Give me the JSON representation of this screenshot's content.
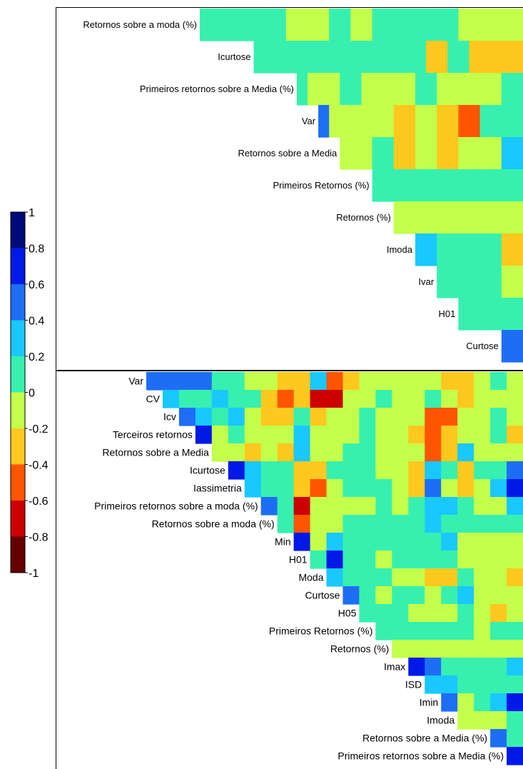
{
  "palette": [
    "#640000",
    "#cc0000",
    "#ff5500",
    "#ffc81e",
    "#c3ff4b",
    "#37f0af",
    "#19c8ff",
    "#1e6ef5",
    "#0019e6",
    "#000a78"
  ],
  "legend": {
    "ticks": [
      "1",
      "0.8",
      "0.6",
      "0.4",
      "0.2",
      "0",
      "-0.2",
      "-0.4",
      "-0.6",
      "-0.8",
      "-1"
    ],
    "range": [
      -1,
      1
    ]
  },
  "chart_data": [
    {
      "type": "heatmap",
      "rows": [
        "Retornos sobre a moda (%)",
        "Icurtose",
        "Primeiros retornos sobre a Media (%)",
        "Var",
        "Retornos sobre a Media",
        "Primeiros Retornos (%)",
        "Retornos (%)",
        "Imoda",
        "Ivar",
        "H01",
        "Curtose"
      ],
      "values": [
        [
          0.1,
          0.1,
          0.1,
          0.1,
          0.1,
          0.1,
          0.1,
          0.1,
          -0.1,
          -0.1,
          -0.1,
          -0.1,
          0.1,
          0.1,
          -0.1,
          -0.1,
          0.1,
          0.1,
          0.1,
          0.1,
          0.1,
          0.1,
          0.1,
          0.1,
          -0.1,
          -0.1,
          -0.1,
          -0.1,
          -0.1,
          -0.1
        ],
        [
          null,
          null,
          null,
          null,
          null,
          0.1,
          0.1,
          0.1,
          0.1,
          0.1,
          0.1,
          0.1,
          0.1,
          0.1,
          0.1,
          0.1,
          0.1,
          0.1,
          0.1,
          0.1,
          0.1,
          -0.3,
          -0.3,
          0.1,
          0.1,
          -0.3,
          -0.3,
          -0.3,
          -0.3,
          -0.3
        ],
        [
          null,
          null,
          null,
          null,
          null,
          null,
          null,
          null,
          null,
          0.1,
          -0.1,
          -0.1,
          -0.1,
          0.1,
          0.1,
          -0.1,
          -0.1,
          -0.1,
          -0.1,
          -0.1,
          0.1,
          0.1,
          -0.1,
          -0.1,
          -0.1,
          -0.1,
          -0.1,
          -0.1,
          0.1,
          0.1
        ],
        [
          null,
          null,
          null,
          null,
          null,
          null,
          null,
          null,
          null,
          null,
          null,
          0.5,
          -0.1,
          -0.1,
          -0.1,
          -0.1,
          -0.1,
          -0.1,
          -0.3,
          -0.3,
          -0.1,
          -0.1,
          -0.3,
          -0.3,
          -0.5,
          -0.5,
          0.1,
          0.1,
          0.1,
          0.1
        ],
        [
          null,
          null,
          null,
          null,
          null,
          null,
          null,
          null,
          null,
          null,
          null,
          null,
          null,
          -0.1,
          -0.1,
          -0.1,
          0.1,
          0.1,
          -0.3,
          -0.3,
          -0.1,
          -0.1,
          -0.3,
          -0.3,
          -0.1,
          -0.1,
          -0.1,
          -0.1,
          0.3,
          0.3
        ],
        [
          null,
          null,
          null,
          null,
          null,
          null,
          null,
          null,
          null,
          null,
          null,
          null,
          null,
          null,
          null,
          null,
          0.1,
          0.1,
          0.1,
          0.1,
          0.1,
          0.1,
          0.1,
          0.1,
          0.1,
          0.1,
          0.1,
          0.1,
          0.1,
          0.1
        ],
        [
          null,
          null,
          null,
          null,
          null,
          null,
          null,
          null,
          null,
          null,
          null,
          null,
          null,
          null,
          null,
          null,
          null,
          null,
          -0.1,
          -0.1,
          -0.1,
          -0.1,
          -0.1,
          -0.1,
          -0.1,
          -0.1,
          -0.1,
          -0.1,
          -0.1,
          -0.1
        ],
        [
          null,
          null,
          null,
          null,
          null,
          null,
          null,
          null,
          null,
          null,
          null,
          null,
          null,
          null,
          null,
          null,
          null,
          null,
          null,
          null,
          0.3,
          0.3,
          0.1,
          0.1,
          0.1,
          0.1,
          0.1,
          0.1,
          -0.3,
          -0.3
        ],
        [
          null,
          null,
          null,
          null,
          null,
          null,
          null,
          null,
          null,
          null,
          null,
          null,
          null,
          null,
          null,
          null,
          null,
          null,
          null,
          null,
          null,
          null,
          0.1,
          0.1,
          0.1,
          0.1,
          0.1,
          0.1,
          -0.1,
          -0.1
        ],
        [
          null,
          null,
          null,
          null,
          null,
          null,
          null,
          null,
          null,
          null,
          null,
          null,
          null,
          null,
          null,
          null,
          null,
          null,
          null,
          null,
          null,
          null,
          null,
          null,
          0.1,
          0.1,
          0.1,
          0.1,
          0.1,
          0.1
        ],
        [
          null,
          null,
          null,
          null,
          null,
          null,
          null,
          null,
          null,
          null,
          null,
          null,
          null,
          null,
          null,
          null,
          null,
          null,
          null,
          null,
          null,
          null,
          null,
          null,
          null,
          null,
          null,
          null,
          0.5,
          0.5
        ]
      ]
    },
    {
      "type": "heatmap",
      "rows": [
        "Var",
        "CV",
        "Icv",
        "Terceiros retornos",
        "Retornos sobre a Media",
        "Icurtose",
        "Iassimetria",
        "Primeiros retornos sobre a moda (%)",
        "Retornos sobre a moda (%)",
        "Min",
        "H01",
        "Moda",
        "Curtose",
        "H05",
        "Primeiros Retornos (%)",
        "Retornos (%)",
        "Imax",
        "ISD",
        "Imin",
        "Imoda",
        "Retornos sobre a Media (%)",
        "Primeiros retornos sobre a Media (%)"
      ],
      "values": [
        [
          0.5,
          0.5,
          0.5,
          0.5,
          0.1,
          0.1,
          -0.1,
          -0.1,
          -0.3,
          -0.3,
          0.3,
          -0.5,
          -0.3,
          -0.1,
          -0.1,
          -0.1,
          -0.1,
          -0.1,
          -0.3,
          -0.3,
          -0.1,
          0.1,
          -0.1
        ],
        [
          null,
          0.3,
          0.1,
          0.1,
          0.3,
          0.1,
          0.1,
          -0.3,
          -0.5,
          -0.3,
          -0.7,
          -0.7,
          -0.1,
          -0.1,
          0.1,
          -0.1,
          -0.1,
          0.1,
          -0.1,
          -0.3,
          -0.1,
          -0.1,
          -0.1
        ],
        [
          null,
          null,
          0.5,
          0.3,
          0.1,
          0.3,
          -0.1,
          -0.3,
          -0.3,
          0.1,
          -0.3,
          -0.1,
          -0.1,
          0.1,
          -0.1,
          -0.1,
          -0.1,
          -0.5,
          -0.5,
          -0.1,
          -0.1,
          0.1,
          -0.1
        ],
        [
          null,
          null,
          null,
          0.7,
          -0.1,
          0.1,
          -0.1,
          -0.1,
          -0.1,
          0.3,
          -0.1,
          -0.1,
          -0.1,
          0.1,
          -0.1,
          -0.1,
          -0.3,
          -0.5,
          -0.3,
          -0.1,
          -0.1,
          0.1,
          -0.3
        ],
        [
          null,
          null,
          null,
          null,
          -0.1,
          -0.1,
          -0.3,
          -0.1,
          -0.3,
          0.3,
          -0.1,
          -0.1,
          0.1,
          0.1,
          -0.1,
          -0.1,
          -0.1,
          -0.5,
          -0.3,
          0.3,
          -0.1,
          -0.1,
          -0.1
        ],
        [
          null,
          null,
          null,
          null,
          null,
          0.7,
          0.3,
          0.1,
          0.1,
          -0.3,
          -0.3,
          0.1,
          0.1,
          0.1,
          -0.1,
          -0.1,
          -0.3,
          0.3,
          0.1,
          -0.3,
          0.1,
          0.1,
          0.5
        ],
        [
          null,
          null,
          null,
          null,
          null,
          null,
          0.3,
          0.1,
          0.1,
          -0.3,
          -0.5,
          -0.1,
          0.1,
          0.1,
          0.1,
          -0.1,
          -0.3,
          0.5,
          -0.1,
          -0.3,
          -0.1,
          0.3,
          0.7
        ],
        [
          null,
          null,
          null,
          null,
          null,
          null,
          null,
          0.5,
          0.1,
          -0.7,
          -0.1,
          -0.1,
          -0.1,
          -0.1,
          0.1,
          -0.1,
          0.1,
          0.3,
          0.3,
          0.1,
          -0.1,
          -0.1,
          0.3
        ],
        [
          null,
          null,
          null,
          null,
          null,
          null,
          null,
          null,
          0.1,
          -0.5,
          -0.1,
          -0.1,
          0.1,
          0.1,
          0.1,
          0.1,
          0.1,
          0.3,
          0.1,
          0.1,
          0.1,
          0.1,
          0.1
        ],
        [
          null,
          null,
          null,
          null,
          null,
          null,
          null,
          null,
          null,
          0.7,
          -0.1,
          0.3,
          0.1,
          0.1,
          0.1,
          0.1,
          0.1,
          0.1,
          0.3,
          -0.1,
          -0.1,
          -0.1,
          -0.1
        ],
        [
          null,
          null,
          null,
          null,
          null,
          null,
          null,
          null,
          null,
          null,
          0.1,
          0.7,
          0.1,
          0.1,
          -0.1,
          0.1,
          0.1,
          0.1,
          0.1,
          -0.1,
          -0.1,
          -0.1,
          -0.1
        ],
        [
          null,
          null,
          null,
          null,
          null,
          null,
          null,
          null,
          null,
          null,
          null,
          0.3,
          0.1,
          0.1,
          0.1,
          -0.1,
          -0.1,
          -0.3,
          -0.3,
          0.1,
          -0.1,
          -0.1,
          -0.3
        ],
        [
          null,
          null,
          null,
          null,
          null,
          null,
          null,
          null,
          null,
          null,
          null,
          null,
          0.5,
          0.1,
          -0.1,
          0.1,
          0.1,
          -0.1,
          0.1,
          0.3,
          -0.1,
          -0.1,
          -0.1
        ],
        [
          null,
          null,
          null,
          null,
          null,
          null,
          null,
          null,
          null,
          null,
          null,
          null,
          null,
          0.1,
          0.1,
          0.1,
          -0.1,
          -0.1,
          -0.1,
          0.1,
          -0.1,
          -0.3,
          -0.1
        ],
        [
          null,
          null,
          null,
          null,
          null,
          null,
          null,
          null,
          null,
          null,
          null,
          null,
          null,
          null,
          0.1,
          0.1,
          0.1,
          0.1,
          0.1,
          0.1,
          -0.1,
          0.1,
          0.1
        ],
        [
          null,
          null,
          null,
          null,
          null,
          null,
          null,
          null,
          null,
          null,
          null,
          null,
          null,
          null,
          null,
          -0.1,
          -0.1,
          -0.1,
          -0.1,
          -0.1,
          -0.1,
          -0.1,
          -0.1
        ],
        [
          null,
          null,
          null,
          null,
          null,
          null,
          null,
          null,
          null,
          null,
          null,
          null,
          null,
          null,
          null,
          null,
          0.7,
          0.5,
          0.1,
          0.1,
          0.1,
          0.1,
          0.3
        ],
        [
          null,
          null,
          null,
          null,
          null,
          null,
          null,
          null,
          null,
          null,
          null,
          null,
          null,
          null,
          null,
          null,
          null,
          0.3,
          0.3,
          0.1,
          0.1,
          0.1,
          0.1
        ],
        [
          null,
          null,
          null,
          null,
          null,
          null,
          null,
          null,
          null,
          null,
          null,
          null,
          null,
          null,
          null,
          null,
          null,
          null,
          0.5,
          -0.1,
          0.1,
          0.3,
          0.7
        ],
        [
          null,
          null,
          null,
          null,
          null,
          null,
          null,
          null,
          null,
          null,
          null,
          null,
          null,
          null,
          null,
          null,
          null,
          null,
          null,
          -0.1,
          -0.1,
          -0.1,
          0.1
        ],
        [
          null,
          null,
          null,
          null,
          null,
          null,
          null,
          null,
          null,
          null,
          null,
          null,
          null,
          null,
          null,
          null,
          null,
          null,
          null,
          null,
          null,
          0.5,
          0.1
        ],
        [
          null,
          null,
          null,
          null,
          null,
          null,
          null,
          null,
          null,
          null,
          null,
          null,
          null,
          null,
          null,
          null,
          null,
          null,
          null,
          null,
          null,
          null,
          0.7
        ]
      ]
    }
  ]
}
